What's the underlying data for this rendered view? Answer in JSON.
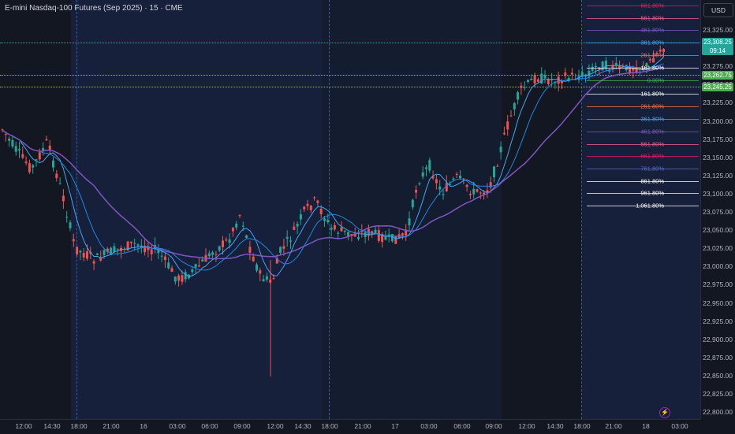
{
  "chart_title": "E-mini Nasdaq-100 Futures (Sep 2025) · 15 · CME",
  "currency_button": "USD",
  "current_price": "23,308.25",
  "countdown": "09:14",
  "tag_2": "23,262.75",
  "tag_3": "23,245.25",
  "price_ticks": [
    "23,325.00",
    "23,300.00",
    "23,275.00",
    "23,250.00",
    "23,225.00",
    "23,200.00",
    "23,175.00",
    "23,150.00",
    "23,125.00",
    "23,100.00",
    "23,075.00",
    "23,050.00",
    "23,025.00",
    "23,000.00",
    "22,975.00",
    "22,950.00",
    "22,925.00",
    "22,900.00",
    "22,875.00",
    "22,850.00",
    "22,825.00",
    "22,800.00"
  ],
  "time_ticks": [
    "12:00",
    "14:30",
    "18:00",
    "21:00",
    "16",
    "03:00",
    "06:00",
    "09:00",
    "12:00",
    "14:30",
    "18:00",
    "21:00",
    "17",
    "03:00",
    "06:00",
    "09:00",
    "12:00",
    "14:30",
    "18:00",
    "21:00",
    "18",
    "03:00"
  ],
  "fib_levels": [
    {
      "label": "661.80%",
      "color": "#e91e63"
    },
    {
      "label": "561.80%",
      "color": "#f06292"
    },
    {
      "label": "461.80%",
      "color": "#7e57c2"
    },
    {
      "label": "361.80%",
      "color": "#42a5f5"
    },
    {
      "label": "261.80%",
      "color": "#ff7043"
    },
    {
      "label": "161.80%",
      "color": "#ffffff"
    },
    {
      "label": "0.00%",
      "color": "#4caf50"
    },
    {
      "label": "161.80%",
      "color": "#ffffff"
    },
    {
      "label": "261.80%",
      "color": "#ff7043"
    },
    {
      "label": "361.80%",
      "color": "#42a5f5"
    },
    {
      "label": "461.80%",
      "color": "#7e57c2"
    },
    {
      "label": "561.80%",
      "color": "#f06292"
    },
    {
      "label": "661.80%",
      "color": "#e91e63"
    },
    {
      "label": "761.80%",
      "color": "#5c6bc0"
    },
    {
      "label": "861.80%",
      "color": "#ffffff"
    },
    {
      "label": "961.80%",
      "color": "#ffffff"
    },
    {
      "label": "1,061.80%",
      "color": "#ffffff"
    }
  ],
  "colors": {
    "up": "#26a69a",
    "down": "#ef5350",
    "background": "#131722",
    "session": "#16203a",
    "ma_purple": "#7e57c2",
    "ma_blue": "#2196f3"
  },
  "flash_icon": "lightning-icon"
}
